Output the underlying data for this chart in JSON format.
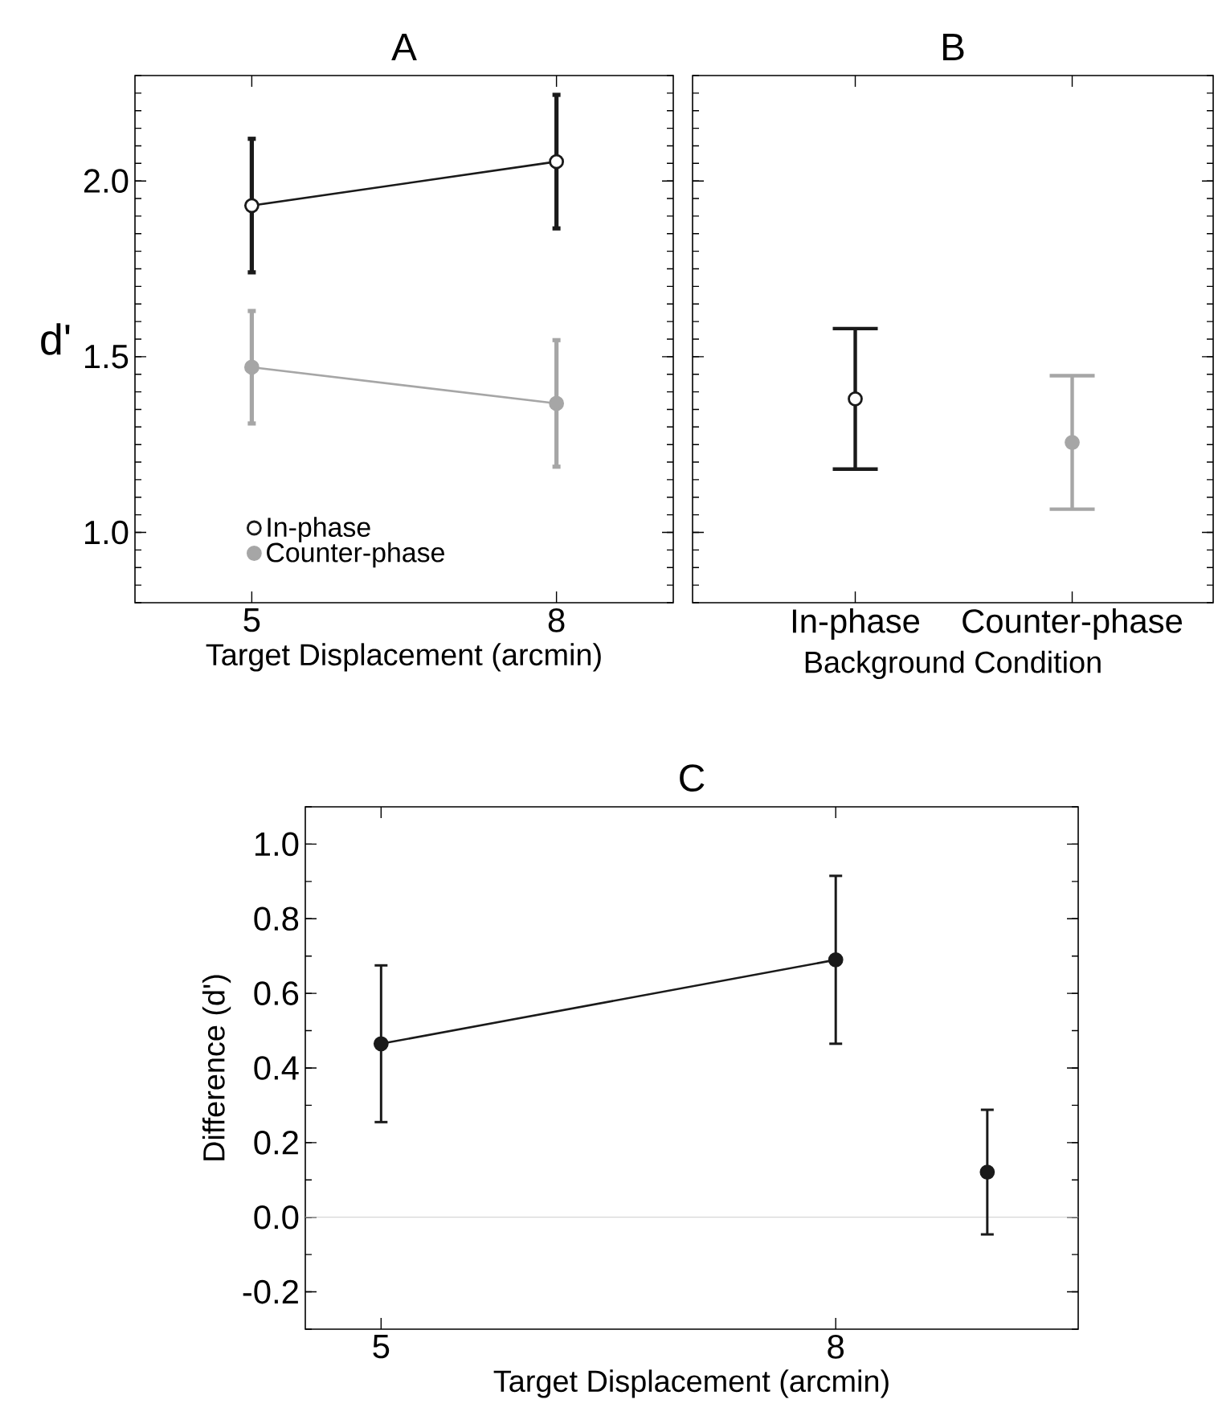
{
  "chart_data": [
    {
      "type": "line",
      "title": "A",
      "xlabel": "Target Displacement (arcmin)",
      "ylabel": "d'",
      "x": [
        5,
        8
      ],
      "xlim": [
        3.85,
        9.15
      ],
      "xticks": [
        5,
        8
      ],
      "ylim": [
        0.8,
        2.3
      ],
      "yticks": [
        {
          "value": 1.0,
          "label": "1.0"
        },
        {
          "value": 1.5,
          "label": "1.5"
        },
        {
          "value": 2.0,
          "label": "2.0"
        }
      ],
      "marker": "circle",
      "legend": "bottom left",
      "series": [
        {
          "name": "In-phase",
          "color": "#1a1a1a",
          "values": [
            1.93,
            2.055
          ],
          "errors": [
            0.19,
            0.19
          ]
        },
        {
          "name": "Counter-phase",
          "color": "#a6a6a6",
          "values": [
            1.47,
            1.367
          ],
          "errors": [
            0.16,
            0.18
          ]
        }
      ]
    },
    {
      "type": "scatter",
      "title": "B",
      "xlabel": "Background Condition",
      "categories": [
        "In-phase",
        "Counter-phase"
      ],
      "values": [
        1.38,
        1.256
      ],
      "colors": [
        "#1a1a1a",
        "#a6a6a6"
      ],
      "errors": [
        0.2,
        0.19
      ],
      "ylim": [
        0.8,
        2.3
      ],
      "yticks": [
        1.0,
        1.5,
        2.0
      ],
      "tick_labels": "x",
      "marker": "circle"
    },
    {
      "type": "line",
      "title": "C",
      "xlabel": "Target Displacement (arcmin)",
      "ylabel": "Difference (d')",
      "xlim": [
        4.5,
        9.6
      ],
      "xticks": [
        5,
        8
      ],
      "ylim": [
        -0.3,
        1.1
      ],
      "yticks": [
        {
          "value": -0.2,
          "label": "-0.2"
        },
        {
          "value": 0.0,
          "label": "0.0"
        },
        {
          "value": 0.2,
          "label": "0.2"
        },
        {
          "value": 0.4,
          "label": "0.4"
        },
        {
          "value": 0.6,
          "label": "0.6"
        },
        {
          "value": 0.8,
          "label": "0.8"
        },
        {
          "value": 1.0,
          "label": "1.0"
        }
      ],
      "marker": "circle",
      "ref_lines": [
        {
          "axis": "y",
          "value": 0,
          "color": "#cccccc"
        }
      ],
      "series": [
        {
          "color": "#1a1a1a",
          "x": [
            5,
            8
          ],
          "values": [
            0.465,
            0.69
          ],
          "errors": [
            0.21,
            0.225
          ]
        },
        {
          "type": "scatter",
          "color": "#1a1a1a",
          "x": [
            9.0
          ],
          "values": [
            0.121
          ],
          "errors": [
            0.167
          ]
        }
      ]
    }
  ]
}
